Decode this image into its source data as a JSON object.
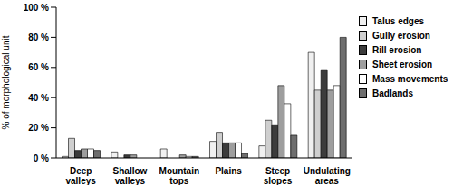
{
  "chart_data": {
    "type": "bar",
    "y_label": "% of morphological unit",
    "categories": [
      "Deep valleys",
      "Shallow valleys",
      "Mountain tops",
      "Plains",
      "Steep slopes",
      "Undulating areas"
    ],
    "series": [
      {
        "name": "Talus edges",
        "color": "#f0f0f0",
        "values": [
          1,
          4,
          6,
          11,
          8,
          70
        ]
      },
      {
        "name": "Gully erosion",
        "color": "#cfcfcf",
        "values": [
          13,
          0,
          0,
          17,
          25,
          45
        ]
      },
      {
        "name": "Rill erosion",
        "color": "#3c3c3c",
        "values": [
          5,
          2,
          0,
          10,
          22,
          58
        ]
      },
      {
        "name": "Sheet erosion",
        "color": "#9e9e9e",
        "values": [
          6,
          2,
          2,
          10,
          48,
          45
        ]
      },
      {
        "name": "Mass movements",
        "color": "#ffffff",
        "values": [
          6,
          0,
          1,
          10,
          36,
          48
        ]
      },
      {
        "name": "Badlands",
        "color": "#6e6e6e",
        "values": [
          5,
          0,
          1,
          3,
          15,
          80
        ]
      }
    ],
    "ylim": [
      0,
      100
    ],
    "yticks": [
      {
        "value": 0,
        "label": "0 %"
      },
      {
        "value": 20,
        "label": "20 %"
      },
      {
        "value": 40,
        "label": "40 %"
      },
      {
        "value": 60,
        "label": "60 %"
      },
      {
        "value": 80,
        "label": "80 %"
      },
      {
        "value": 100,
        "label": "100 %"
      }
    ],
    "grid": false,
    "legend": "right"
  }
}
